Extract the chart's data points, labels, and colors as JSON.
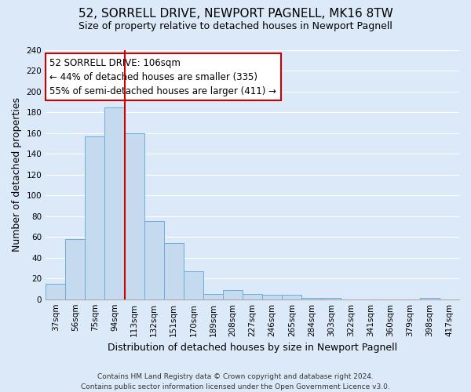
{
  "title": "52, SORRELL DRIVE, NEWPORT PAGNELL, MK16 8TW",
  "subtitle": "Size of property relative to detached houses in Newport Pagnell",
  "xlabel": "Distribution of detached houses by size in Newport Pagnell",
  "ylabel": "Number of detached properties",
  "bar_labels": [
    "37sqm",
    "56sqm",
    "75sqm",
    "94sqm",
    "113sqm",
    "132sqm",
    "151sqm",
    "170sqm",
    "189sqm",
    "208sqm",
    "227sqm",
    "246sqm",
    "265sqm",
    "284sqm",
    "303sqm",
    "322sqm",
    "341sqm",
    "360sqm",
    "379sqm",
    "398sqm",
    "417sqm"
  ],
  "bar_values": [
    15,
    58,
    157,
    185,
    160,
    75,
    54,
    27,
    5,
    9,
    5,
    4,
    4,
    1,
    1,
    0,
    0,
    0,
    0,
    1,
    0
  ],
  "bar_color": "#c5d9ef",
  "bar_edge_color": "#6aaed6",
  "bar_width": 1.0,
  "vline_color": "#cc0000",
  "vline_pos": 3.5,
  "annotation_text": "52 SORRELL DRIVE: 106sqm\n← 44% of detached houses are smaller (335)\n55% of semi-detached houses are larger (411) →",
  "annotation_box_facecolor": "#ffffff",
  "annotation_box_edgecolor": "#cc0000",
  "ylim": [
    0,
    240
  ],
  "yticks": [
    0,
    20,
    40,
    60,
    80,
    100,
    120,
    140,
    160,
    180,
    200,
    220,
    240
  ],
  "fig_background_color": "#dce9f8",
  "plot_background_color": "#dce9f8",
  "grid_color": "#ffffff",
  "footer_line1": "Contains HM Land Registry data © Crown copyright and database right 2024.",
  "footer_line2": "Contains public sector information licensed under the Open Government Licence v3.0.",
  "title_fontsize": 11,
  "subtitle_fontsize": 9,
  "axis_label_fontsize": 9,
  "tick_fontsize": 7.5,
  "annotation_fontsize": 8.5,
  "footer_fontsize": 6.5
}
